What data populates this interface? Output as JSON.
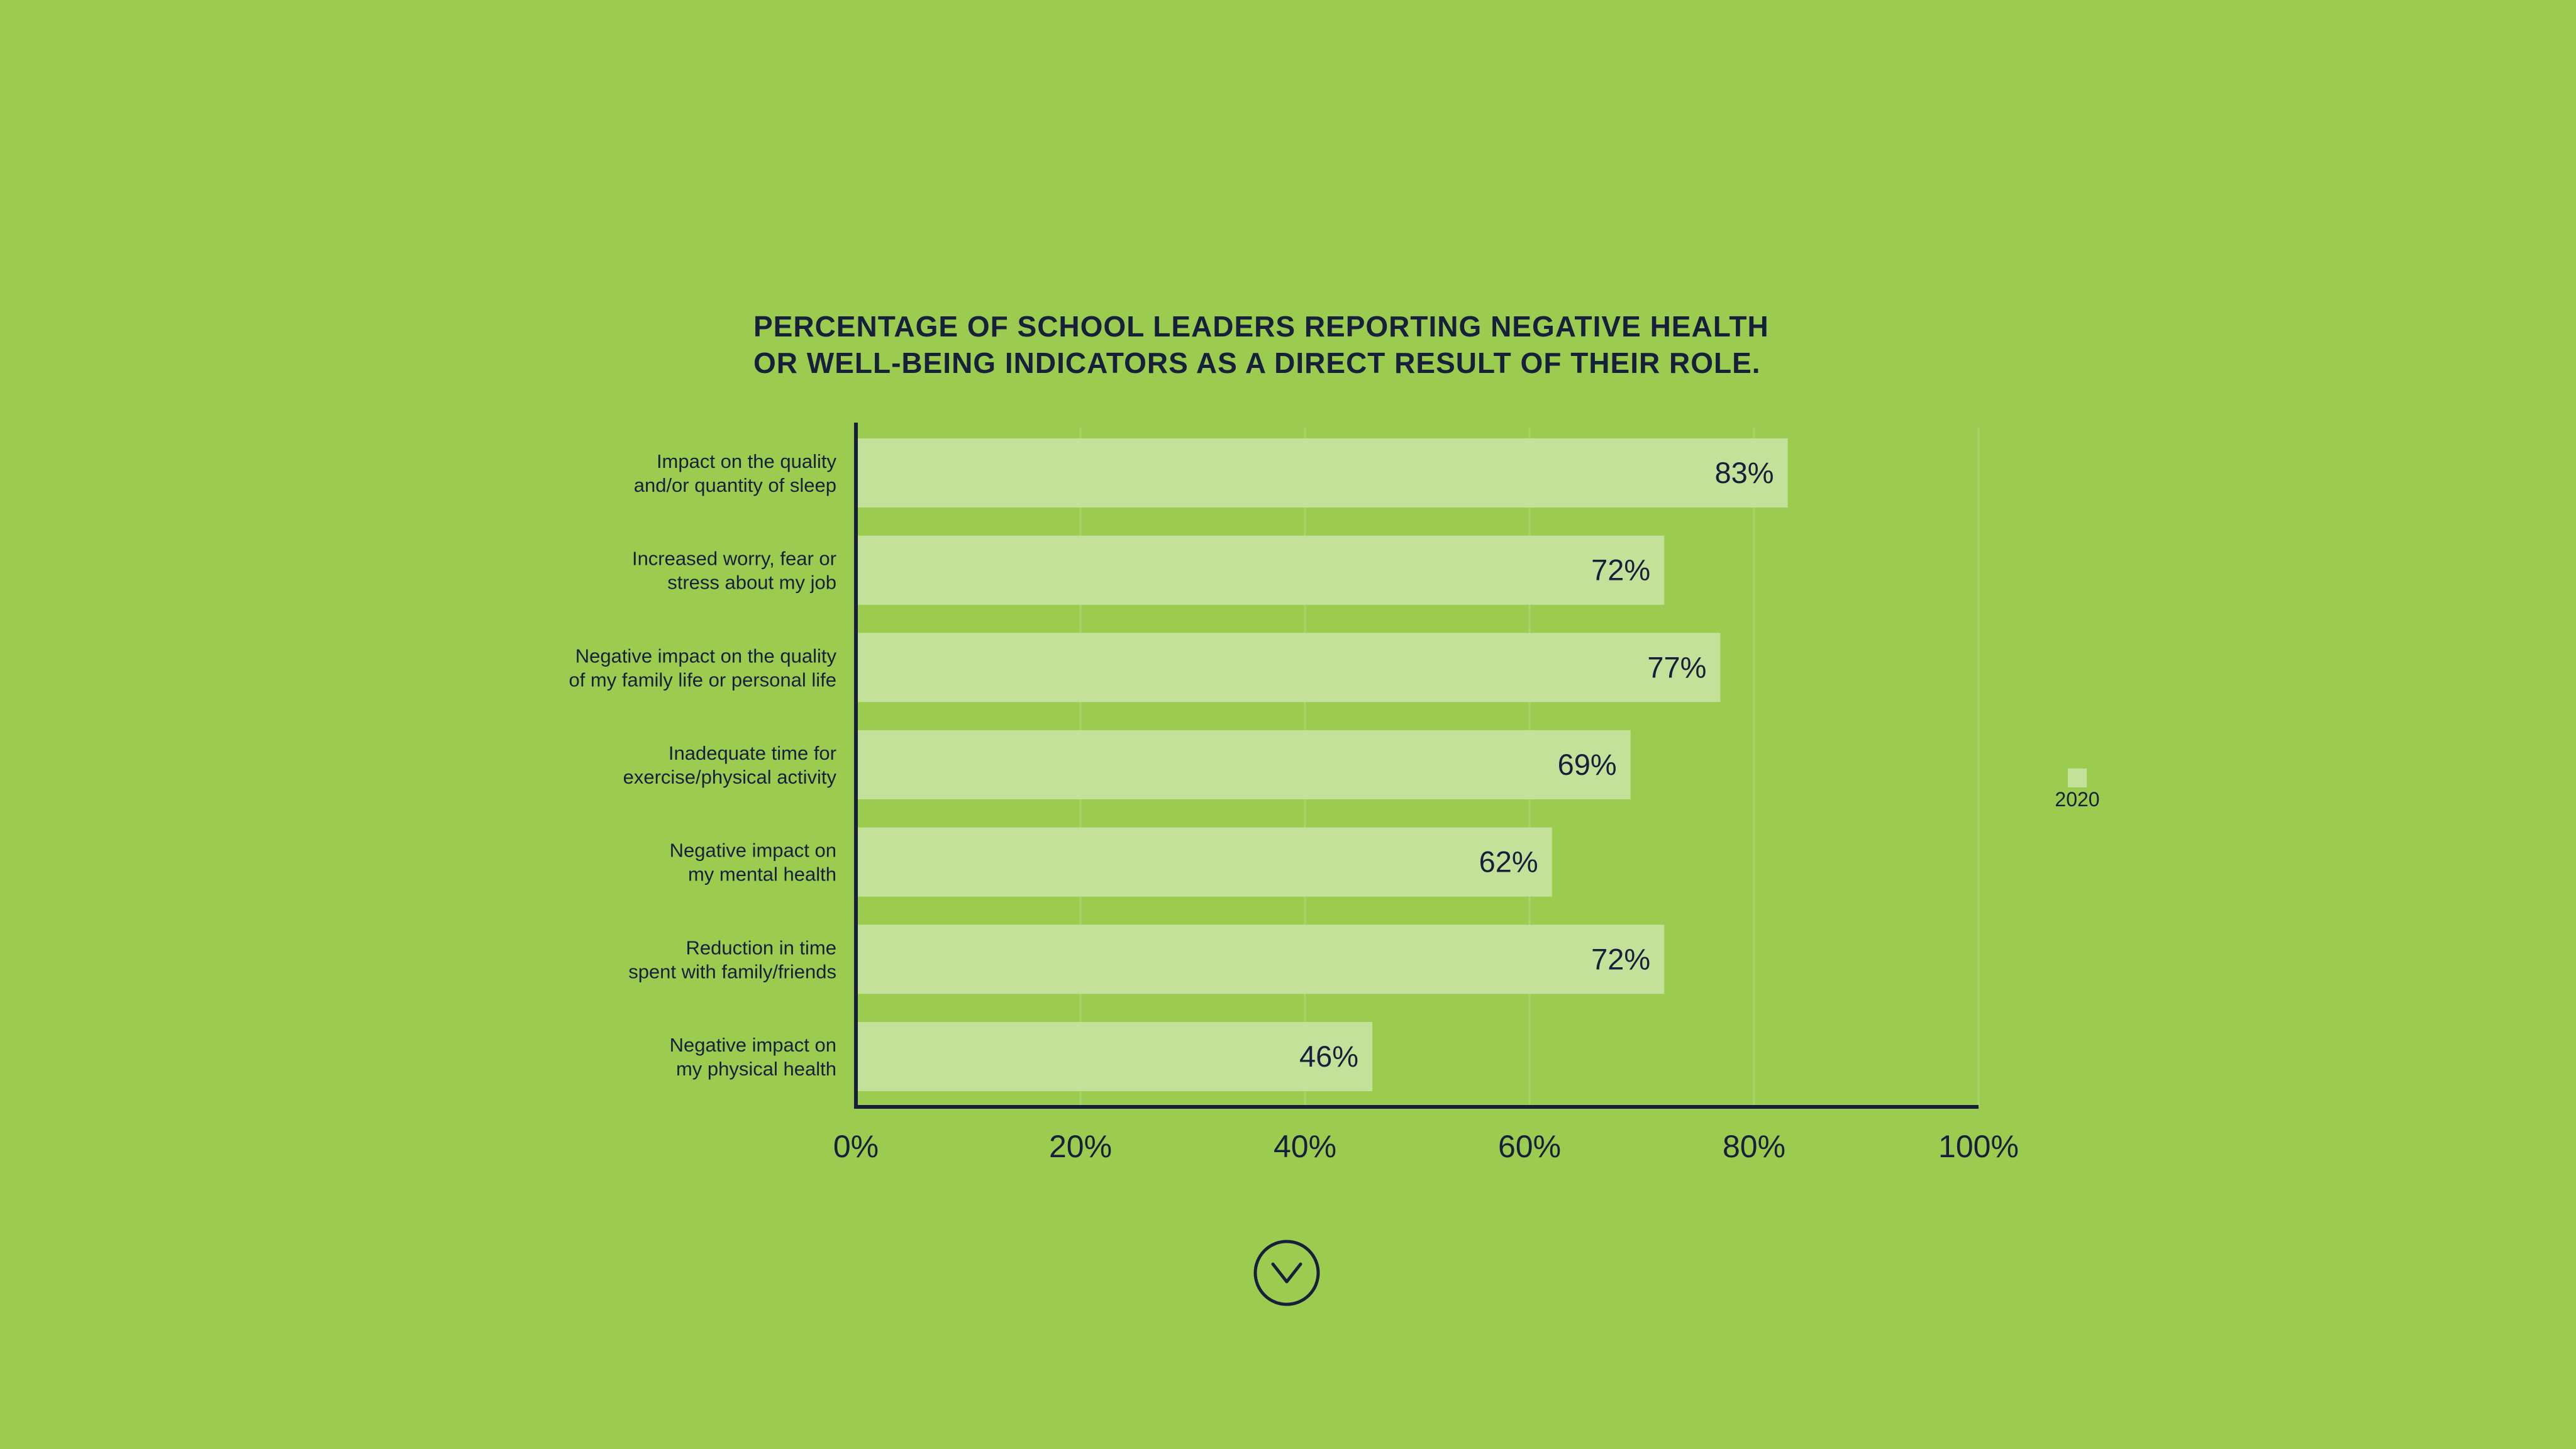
{
  "colors": {
    "background": "#9bcc50",
    "bar": "#c4e19a",
    "text": "#16203a",
    "gridline": "#aad26a"
  },
  "icons": {
    "scroll_down": "chevron-down-circle-icon"
  },
  "chart_data": {
    "type": "bar",
    "orientation": "horizontal",
    "title": [
      "PERCENTAGE OF SCHOOL LEADERS REPORTING NEGATIVE HEALTH",
      "OR WELL-BEING INDICATORS AS A DIRECT RESULT OF THEIR ROLE."
    ],
    "categories": [
      [
        "Impact on the quality",
        "and/or quantity of sleep"
      ],
      [
        "Increased worry, fear or",
        "stress about my job"
      ],
      [
        "Negative impact on the quality",
        "of my family life or personal life"
      ],
      [
        "Inadequate time for",
        "exercise/physical activity"
      ],
      [
        "Negative impact on",
        "my mental health"
      ],
      [
        "Reduction in time",
        "spent with family/friends"
      ],
      [
        "Negative impact on",
        "my physical health"
      ]
    ],
    "series": [
      {
        "name": "2020",
        "values": [
          83,
          72,
          77,
          69,
          62,
          72,
          46
        ],
        "value_labels": [
          "83%",
          "72%",
          "77%",
          "69%",
          "62%",
          "72%",
          "46%"
        ]
      }
    ],
    "xlim": [
      0,
      100
    ],
    "ticks": [
      0,
      20,
      40,
      60,
      80,
      100
    ],
    "tick_labels": [
      "0%",
      "20%",
      "40%",
      "60%",
      "80%",
      "100%"
    ],
    "grid": true,
    "legend_position": "right"
  }
}
